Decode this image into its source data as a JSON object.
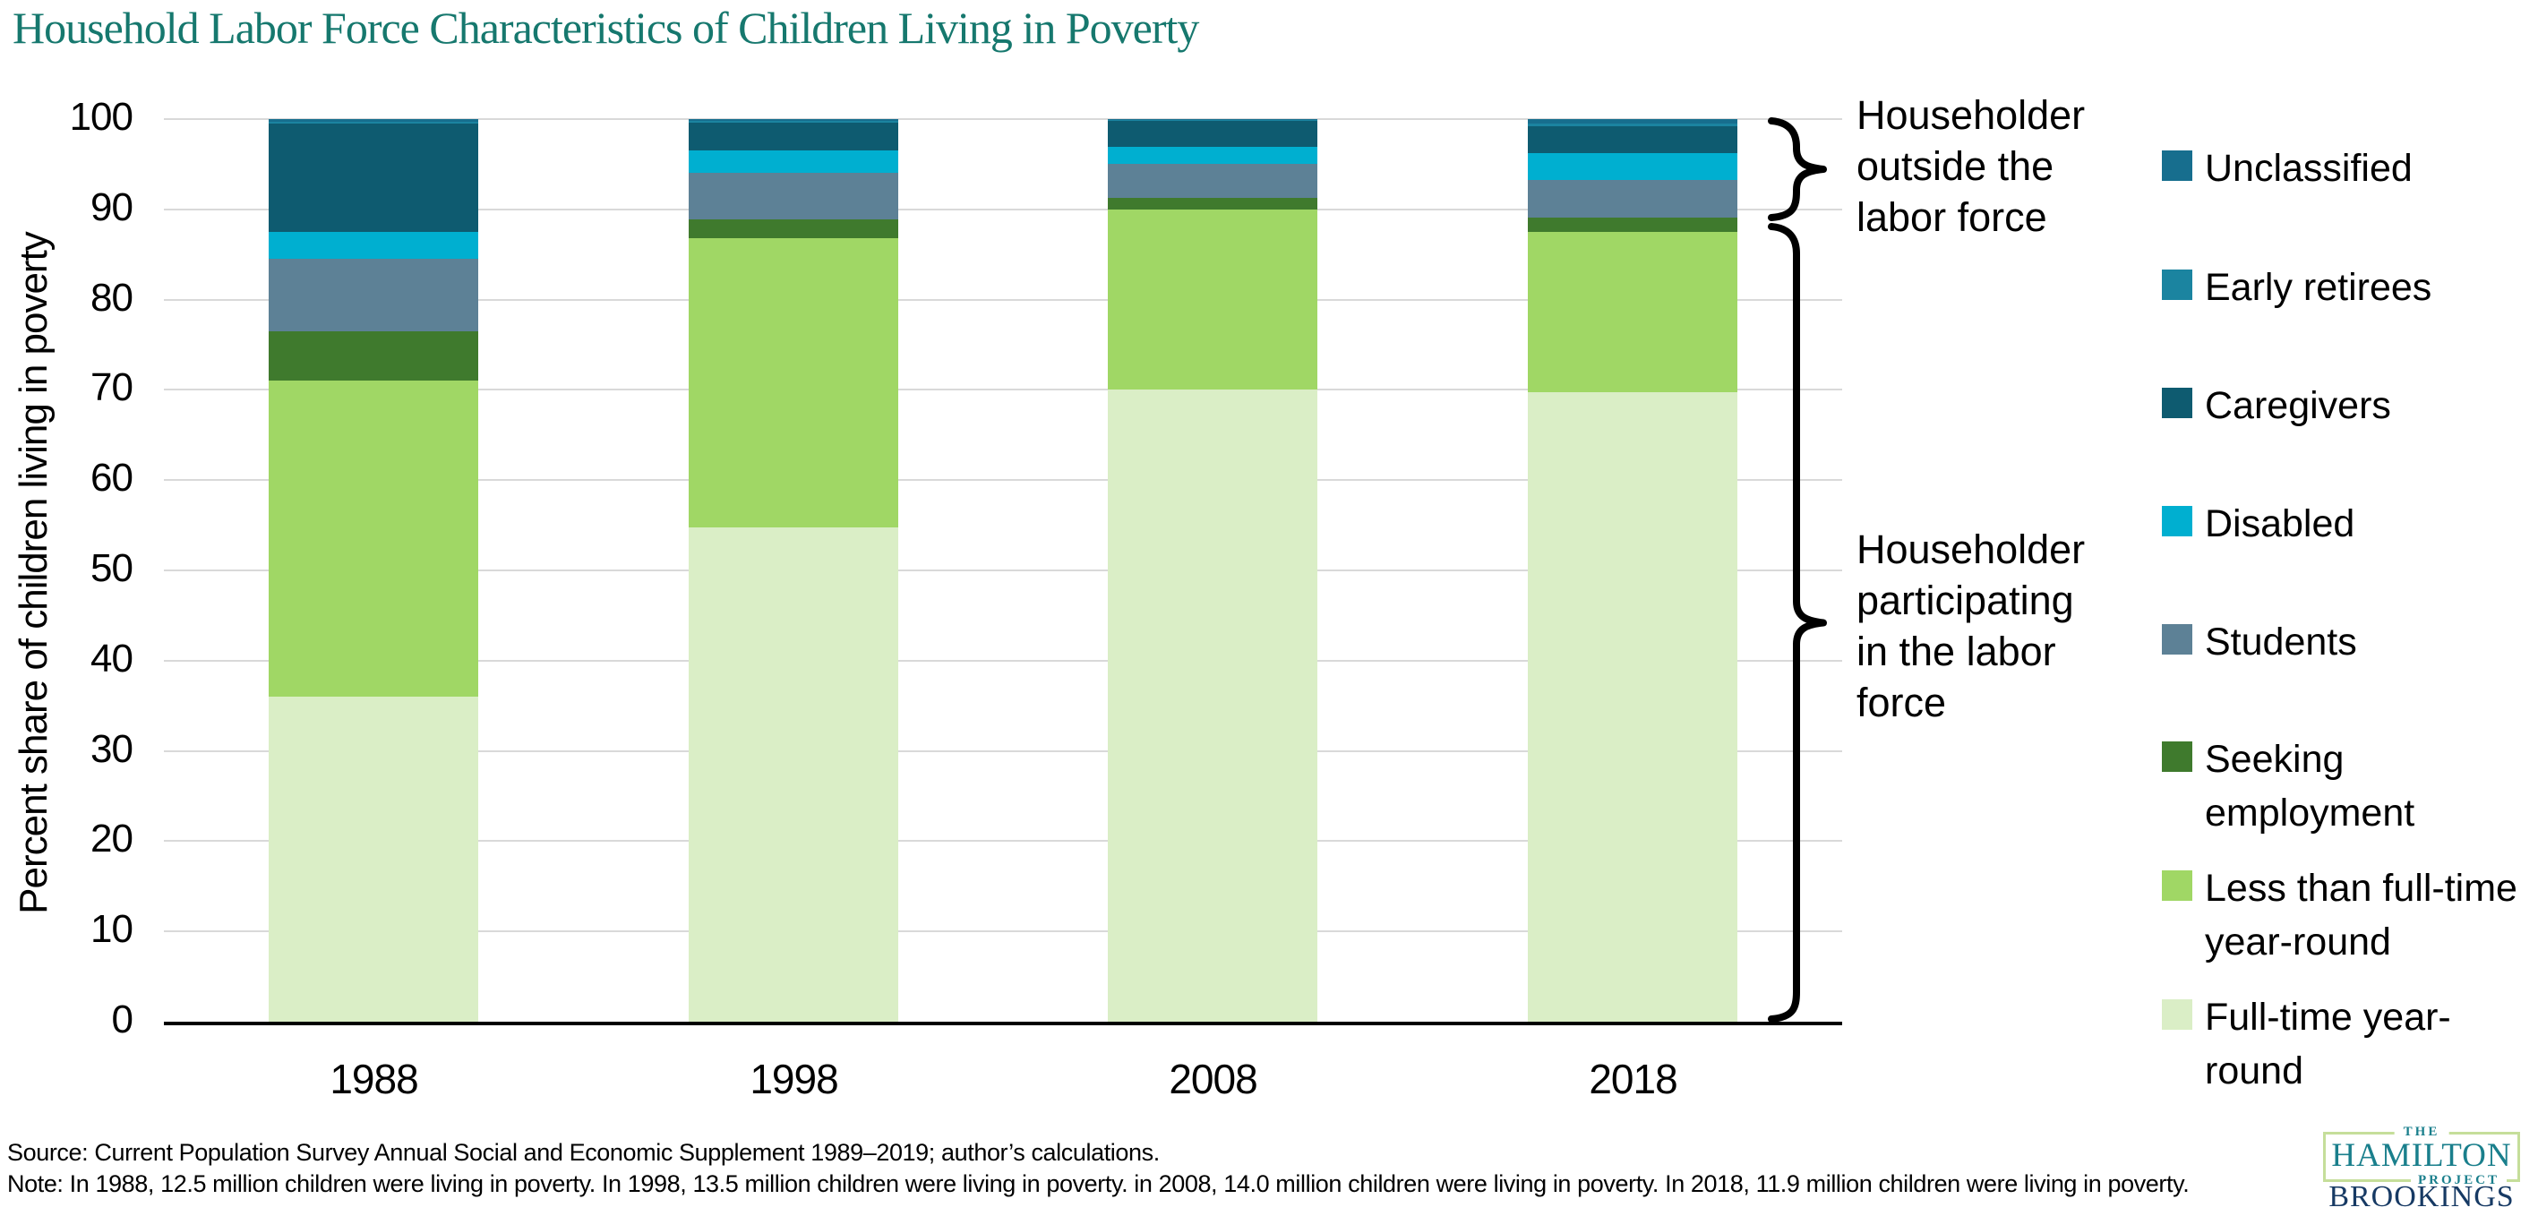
{
  "title": "Household Labor Force Characteristics of Children Living in Poverty",
  "y_axis": {
    "title": "Percent share of children living in poverty",
    "ticks": [
      100,
      90,
      80,
      70,
      60,
      50,
      40,
      30,
      20,
      10,
      0
    ]
  },
  "annotations": [
    {
      "label": "Householder outside the labor force",
      "lines": [
        "Householder",
        "outside the",
        "labor force"
      ],
      "from": 88.5,
      "to": 100
    },
    {
      "label": "Householder participating in the labor force",
      "lines": [
        "Householder",
        "participating",
        "in the labor",
        "force"
      ],
      "from": 0,
      "to": 88.2
    }
  ],
  "legend": [
    {
      "label": "Unclassified",
      "lines": [
        "Unclassified"
      ],
      "color": "#176E8E"
    },
    {
      "label": "Early retirees",
      "lines": [
        "Early retirees"
      ],
      "color": "#1B84A0"
    },
    {
      "label": "Caregivers",
      "lines": [
        "Caregivers"
      ],
      "color": "#0E5B70"
    },
    {
      "label": "Disabled",
      "lines": [
        "Disabled"
      ],
      "color": "#00AFD0"
    },
    {
      "label": "Students",
      "lines": [
        "Students"
      ],
      "color": "#5D8196"
    },
    {
      "label": "Seeking employment",
      "lines": [
        "Seeking",
        "employment"
      ],
      "color": "#3F7A2D"
    },
    {
      "label": "Less than full-time year-round",
      "lines": [
        "Less than full-time",
        "year-round"
      ],
      "color": "#A0D765"
    },
    {
      "label": "Full-time year-round",
      "lines": [
        "Full-time year-",
        "round"
      ],
      "color": "#DAEEC6"
    }
  ],
  "chart_data": {
    "type": "bar",
    "stacked": true,
    "title": "Household Labor Force Characteristics of Children Living in Poverty",
    "xlabel": "",
    "ylabel": "Percent share of children living in poverty",
    "ylim": [
      0,
      100
    ],
    "grid": true,
    "legend_position": "right",
    "categories": [
      "1988",
      "1998",
      "2008",
      "2018"
    ],
    "series": [
      {
        "name": "Full-time year-round",
        "color": "#DAEEC6",
        "values": [
          36.0,
          54.8,
          70.0,
          69.7
        ]
      },
      {
        "name": "Less than full-time year-round",
        "color": "#A0D765",
        "values": [
          35.0,
          32.0,
          20.0,
          17.8
        ]
      },
      {
        "name": "Seeking employment",
        "color": "#3F7A2D",
        "values": [
          5.5,
          2.1,
          1.3,
          1.6
        ]
      },
      {
        "name": "Students",
        "color": "#5D8196",
        "values": [
          8.0,
          5.1,
          3.7,
          4.2
        ]
      },
      {
        "name": "Disabled",
        "color": "#00AFD0",
        "values": [
          3.0,
          2.5,
          1.9,
          2.9
        ]
      },
      {
        "name": "Caregivers",
        "color": "#0E5B70",
        "values": [
          12.0,
          3.1,
          2.9,
          3.0
        ]
      },
      {
        "name": "Early retirees",
        "color": "#1B84A0",
        "values": [
          0.2,
          0.2,
          0.1,
          0.3
        ]
      },
      {
        "name": "Unclassified",
        "color": "#176E8E",
        "values": [
          0.3,
          0.2,
          0.1,
          0.5
        ]
      }
    ]
  },
  "source": "Source: Current Population Survey Annual Social and Economic Supplement 1989–2019; author’s calculations.",
  "note": "Note: In 1988, 12.5 million children were living in poverty. In 1998, 13.5 million children were living in poverty. in 2008, 14.0 million children were living in poverty. In 2018, 11.9 million children were living in poverty.",
  "logo": {
    "the": "THE",
    "hamilton": "HAMILTON",
    "project": "PROJECT",
    "brookings": "BROOKINGS"
  },
  "colors": {
    "title_teal": "#16786E",
    "gridline": "#D9D9D9",
    "axis": "#000000",
    "logo_teal": "#1A7F8C",
    "logo_border_green": "#C5DE9A",
    "brookings_navy": "#173A64"
  }
}
